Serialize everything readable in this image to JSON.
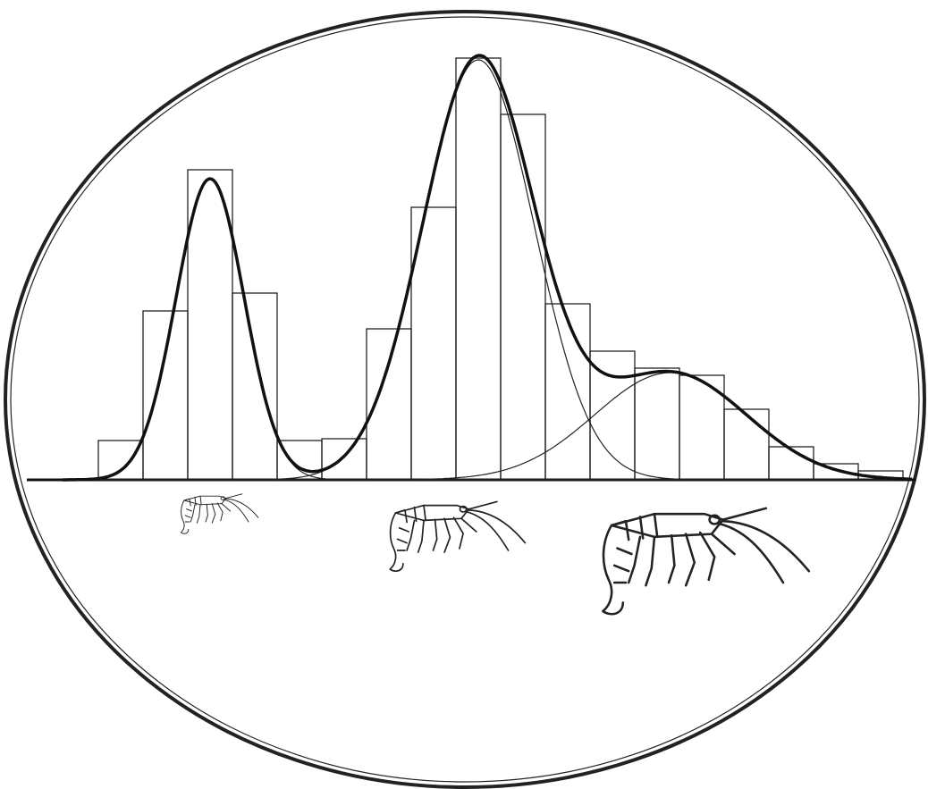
{
  "chart_data": {
    "type": "histogram",
    "bins": [
      0,
      1,
      2,
      3,
      4,
      5,
      6,
      7,
      8,
      9,
      10,
      11,
      12,
      13,
      14,
      15,
      16,
      17,
      18
    ],
    "counts": [
      44,
      189,
      347,
      209,
      44,
      46,
      169,
      305,
      472,
      409,
      197,
      144,
      125,
      117,
      79,
      37,
      18,
      10
    ],
    "components": [
      {
        "mean": 2.5,
        "sd": 0.76,
        "peak": 337
      },
      {
        "mean": 8.5,
        "sd": 1.25,
        "peak": 470
      },
      {
        "mean": 12.8,
        "sd": 1.7,
        "peak": 120
      }
    ],
    "xlim": [
      -1.4,
      18.6
    ],
    "ylim": [
      0,
      500
    ]
  }
}
